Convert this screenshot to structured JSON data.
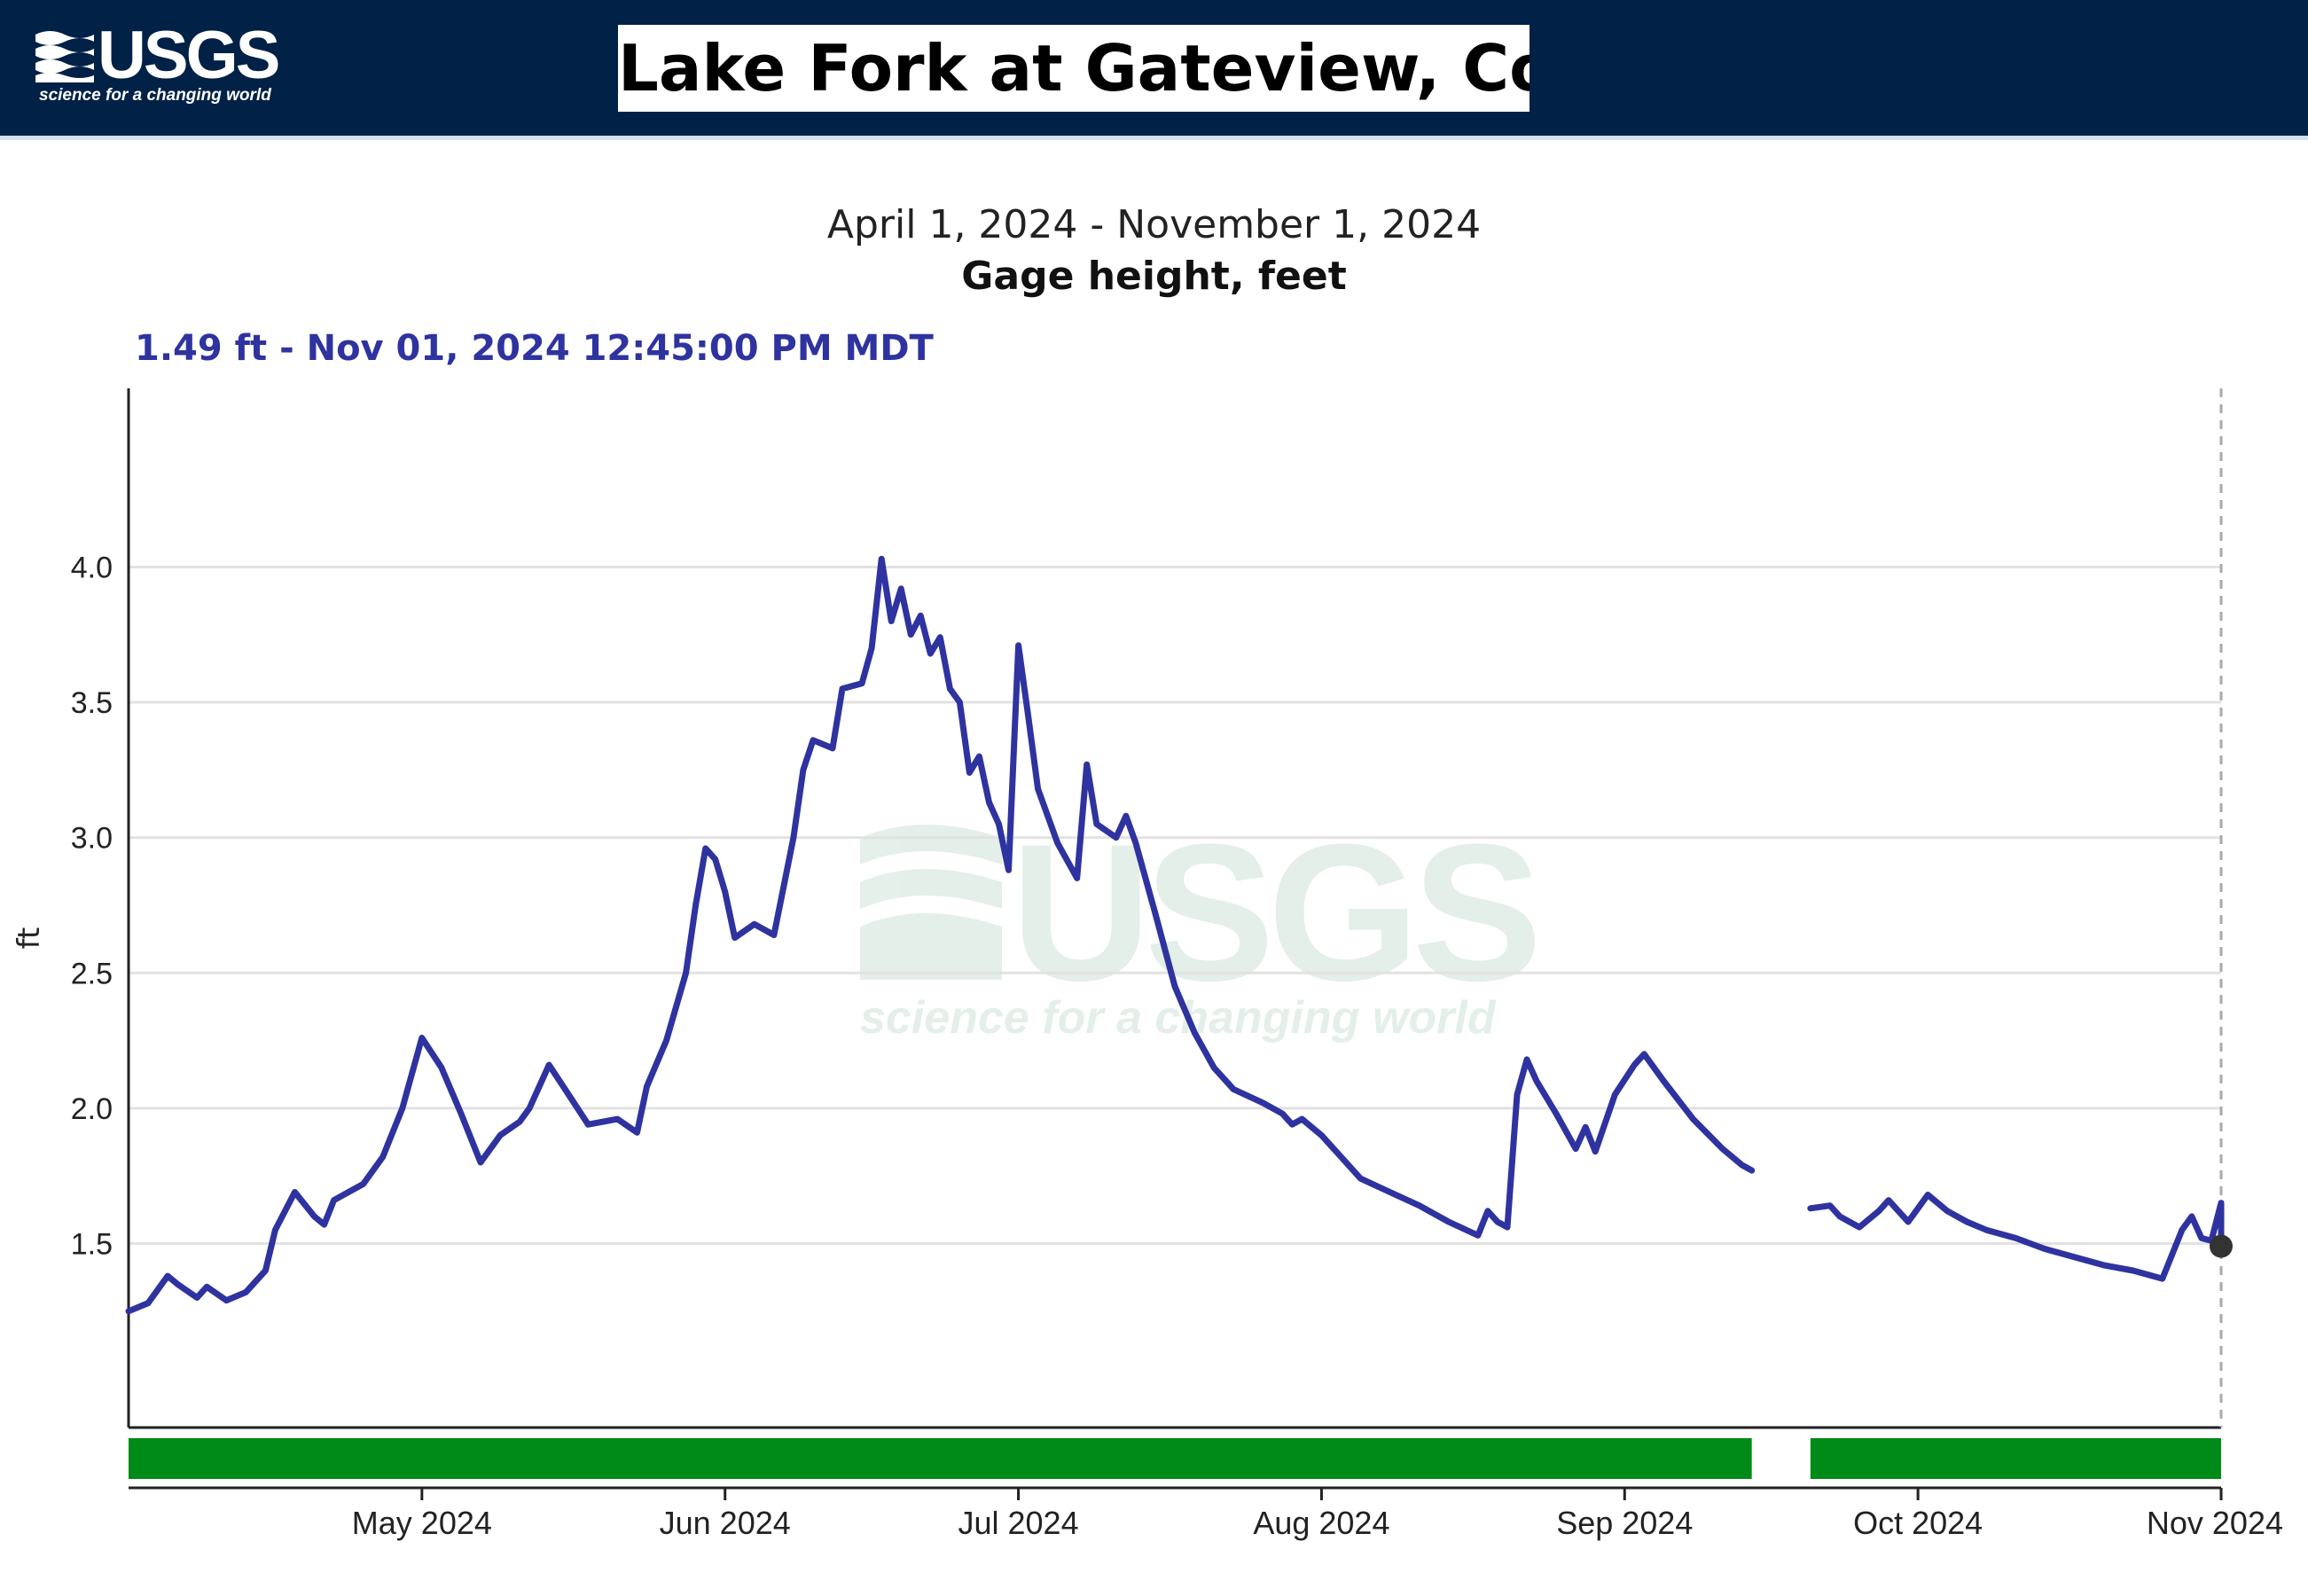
{
  "header": {
    "logo_text": "USGS",
    "logo_tagline": "science for a changing world",
    "station_title": "Lake Fork at Gateview, Co."
  },
  "watermark": {
    "text": "USGS",
    "tagline": "science for a changing world"
  },
  "chart_data": {
    "type": "line",
    "title": "April 1, 2024 - November 1, 2024",
    "subtitle": "Gage height, feet",
    "ylabel": "ft",
    "xlabel": "",
    "current_reading": "1.49 ft - Nov 01, 2024 12:45:00 PM MDT",
    "x_range": [
      "2024-04-01",
      "2024-11-01"
    ],
    "ylim": [
      0.82,
      4.66
    ],
    "y_ticks": [
      4.0,
      3.5,
      3.0,
      2.5,
      2.0,
      1.5
    ],
    "y_tick_labels": [
      "4.0",
      "3.5",
      "3.0",
      "2.5",
      "2.0",
      "1.5"
    ],
    "x_ticks": [
      "2024-05-01",
      "2024-06-01",
      "2024-07-01",
      "2024-08-01",
      "2024-09-01",
      "2024-10-01",
      "2024-11-01"
    ],
    "x_tick_labels": [
      "May 2024",
      "Jun 2024",
      "Jul 2024",
      "Aug 2024",
      "Sep 2024",
      "Oct 2024",
      "Nov 2024"
    ],
    "grid": "horizontal",
    "colors": {
      "series": "#2e33a0",
      "approval_bar": "#008a17",
      "grid": "#e2e2e2"
    },
    "series": [
      {
        "segments": [
          [
            [
              "2024-04-01",
              1.25
            ],
            [
              "2024-04-03",
              1.28
            ],
            [
              "2024-04-05",
              1.38
            ],
            [
              "2024-04-06",
              1.35
            ],
            [
              "2024-04-08",
              1.3
            ],
            [
              "2024-04-09",
              1.34
            ],
            [
              "2024-04-11",
              1.29
            ],
            [
              "2024-04-13",
              1.32
            ],
            [
              "2024-04-15",
              1.4
            ],
            [
              "2024-04-16",
              1.55
            ],
            [
              "2024-04-18",
              1.69
            ],
            [
              "2024-04-20",
              1.6
            ],
            [
              "2024-04-21",
              1.57
            ],
            [
              "2024-04-22",
              1.66
            ],
            [
              "2024-04-25",
              1.72
            ],
            [
              "2024-04-27",
              1.82
            ],
            [
              "2024-04-29",
              2.0
            ],
            [
              "2024-05-01",
              2.26
            ],
            [
              "2024-05-03",
              2.15
            ],
            [
              "2024-05-05",
              1.98
            ],
            [
              "2024-05-07",
              1.8
            ],
            [
              "2024-05-09",
              1.9
            ],
            [
              "2024-05-11",
              1.95
            ],
            [
              "2024-05-12",
              2.0
            ],
            [
              "2024-05-14",
              2.16
            ],
            [
              "2024-05-16",
              2.05
            ],
            [
              "2024-05-18",
              1.94
            ],
            [
              "2024-05-21",
              1.96
            ],
            [
              "2024-05-23",
              1.91
            ],
            [
              "2024-05-24",
              2.08
            ],
            [
              "2024-05-26",
              2.25
            ],
            [
              "2024-05-28",
              2.5
            ],
            [
              "2024-05-29",
              2.75
            ],
            [
              "2024-05-30",
              2.96
            ],
            [
              "2024-05-31",
              2.92
            ],
            [
              "2024-06-01",
              2.8
            ],
            [
              "2024-06-02",
              2.63
            ],
            [
              "2024-06-04",
              2.68
            ],
            [
              "2024-06-06",
              2.64
            ],
            [
              "2024-06-08",
              3.0
            ],
            [
              "2024-06-09",
              3.25
            ],
            [
              "2024-06-10",
              3.36
            ],
            [
              "2024-06-12",
              3.33
            ],
            [
              "2024-06-13",
              3.55
            ],
            [
              "2024-06-15",
              3.57
            ],
            [
              "2024-06-16",
              3.7
            ],
            [
              "2024-06-17",
              4.03
            ],
            [
              "2024-06-18",
              3.8
            ],
            [
              "2024-06-19",
              3.92
            ],
            [
              "2024-06-20",
              3.75
            ],
            [
              "2024-06-21",
              3.82
            ],
            [
              "2024-06-22",
              3.68
            ],
            [
              "2024-06-23",
              3.74
            ],
            [
              "2024-06-24",
              3.55
            ],
            [
              "2024-06-25",
              3.5
            ],
            [
              "2024-06-26",
              3.24
            ],
            [
              "2024-06-27",
              3.3
            ],
            [
              "2024-06-28",
              3.13
            ],
            [
              "2024-06-29",
              3.05
            ],
            [
              "2024-06-30",
              2.88
            ],
            [
              "2024-07-01",
              3.71
            ],
            [
              "2024-07-02",
              3.45
            ],
            [
              "2024-07-03",
              3.18
            ],
            [
              "2024-07-05",
              2.98
            ],
            [
              "2024-07-07",
              2.85
            ],
            [
              "2024-07-08",
              3.27
            ],
            [
              "2024-07-09",
              3.05
            ],
            [
              "2024-07-11",
              3.0
            ],
            [
              "2024-07-12",
              3.08
            ],
            [
              "2024-07-13",
              2.98
            ],
            [
              "2024-07-15",
              2.72
            ],
            [
              "2024-07-17",
              2.45
            ],
            [
              "2024-07-19",
              2.28
            ],
            [
              "2024-07-21",
              2.15
            ],
            [
              "2024-07-23",
              2.07
            ],
            [
              "2024-07-26",
              2.02
            ],
            [
              "2024-07-28",
              1.98
            ],
            [
              "2024-07-29",
              1.94
            ],
            [
              "2024-07-30",
              1.96
            ],
            [
              "2024-08-01",
              1.9
            ],
            [
              "2024-08-03",
              1.82
            ],
            [
              "2024-08-05",
              1.74
            ],
            [
              "2024-08-08",
              1.69
            ],
            [
              "2024-08-11",
              1.64
            ],
            [
              "2024-08-14",
              1.58
            ],
            [
              "2024-08-17",
              1.53
            ],
            [
              "2024-08-18",
              1.62
            ],
            [
              "2024-08-19",
              1.58
            ],
            [
              "2024-08-20",
              1.56
            ],
            [
              "2024-08-21",
              2.05
            ],
            [
              "2024-08-22",
              2.18
            ],
            [
              "2024-08-23",
              2.1
            ],
            [
              "2024-08-25",
              1.98
            ],
            [
              "2024-08-27",
              1.85
            ],
            [
              "2024-08-28",
              1.93
            ],
            [
              "2024-08-29",
              1.84
            ],
            [
              "2024-08-31",
              2.05
            ],
            [
              "2024-09-02",
              2.16
            ],
            [
              "2024-09-03",
              2.2
            ],
            [
              "2024-09-05",
              2.1
            ],
            [
              "2024-09-08",
              1.96
            ],
            [
              "2024-09-11",
              1.85
            ],
            [
              "2024-09-13",
              1.79
            ],
            [
              "2024-09-14",
              1.77
            ]
          ],
          [
            [
              "2024-09-20",
              1.63
            ],
            [
              "2024-09-22",
              1.64
            ],
            [
              "2024-09-23",
              1.6
            ],
            [
              "2024-09-25",
              1.56
            ],
            [
              "2024-09-27",
              1.62
            ],
            [
              "2024-09-28",
              1.66
            ],
            [
              "2024-09-30",
              1.58
            ],
            [
              "2024-10-02",
              1.68
            ],
            [
              "2024-10-04",
              1.62
            ],
            [
              "2024-10-06",
              1.58
            ],
            [
              "2024-10-08",
              1.55
            ],
            [
              "2024-10-11",
              1.52
            ],
            [
              "2024-10-14",
              1.48
            ],
            [
              "2024-10-17",
              1.45
            ],
            [
              "2024-10-20",
              1.42
            ],
            [
              "2024-10-23",
              1.4
            ],
            [
              "2024-10-26",
              1.37
            ],
            [
              "2024-10-28",
              1.55
            ],
            [
              "2024-10-29",
              1.6
            ],
            [
              "2024-10-30",
              1.52
            ],
            [
              "2024-10-31",
              1.51
            ],
            [
              "2024-11-01",
              1.65
            ],
            [
              "2024-11-01",
              1.49
            ]
          ]
        ]
      }
    ],
    "current_point": [
      "2024-11-01",
      1.49
    ],
    "approval_bar_segments": [
      [
        "2024-04-01",
        "2024-09-14"
      ],
      [
        "2024-09-20",
        "2024-11-01"
      ]
    ]
  }
}
